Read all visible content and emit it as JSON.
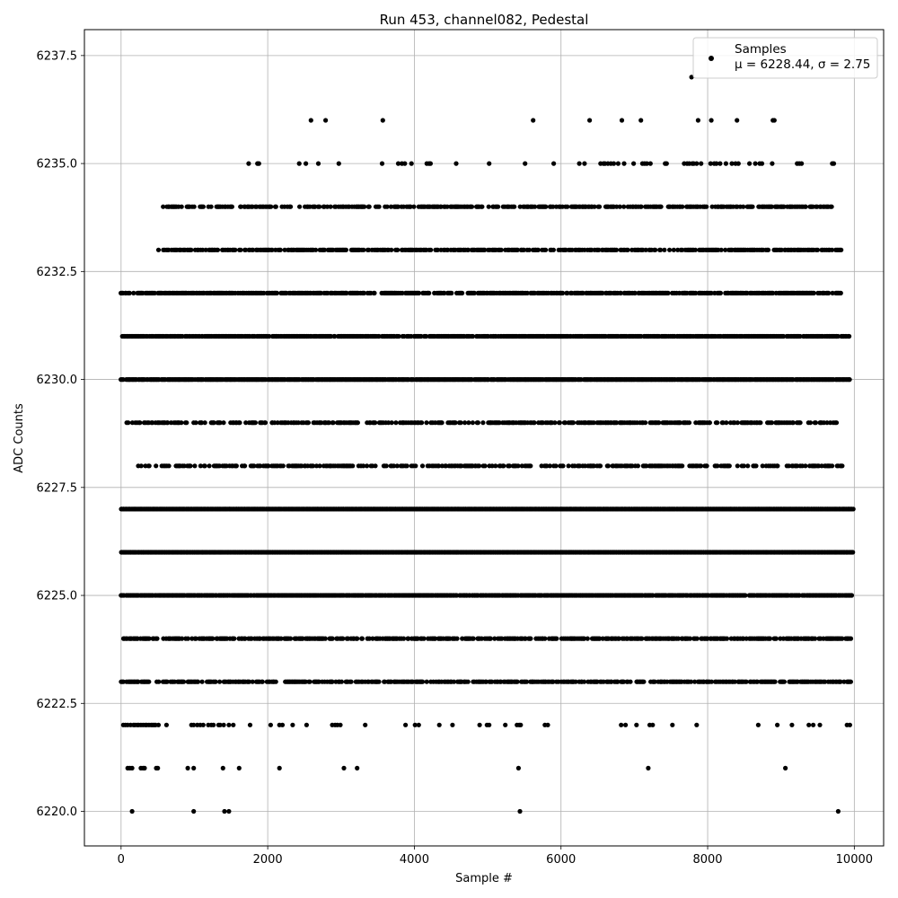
{
  "chart_data": {
    "type": "scatter",
    "title": "Run 453, channel082, Pedestal",
    "xlabel": "Sample #",
    "ylabel": "ADC Counts",
    "xlim": [
      -500,
      10400
    ],
    "ylim": [
      6219.2,
      6238.1
    ],
    "x_ticks": [
      0,
      2000,
      4000,
      6000,
      8000,
      10000
    ],
    "x_tick_labels": [
      "0",
      "2000",
      "4000",
      "6000",
      "8000",
      "10000"
    ],
    "y_ticks": [
      6220.0,
      6222.5,
      6225.0,
      6227.5,
      6230.0,
      6232.5,
      6235.0,
      6237.5
    ],
    "y_tick_labels": [
      "6220.0",
      "6222.5",
      "6225.0",
      "6227.5",
      "6230.0",
      "6232.5",
      "6235.0",
      "6237.5"
    ],
    "grid": true,
    "legend": {
      "placement": "top-right",
      "label_line1": "Samples",
      "label_line2": "μ = 6228.44, σ = 2.75"
    },
    "series": [
      {
        "name": "Samples",
        "color": "#000000",
        "marker": "circle",
        "x_range": [
          0,
          9999
        ],
        "levels": [
          {
            "y": 6237,
            "x": [
              7780
            ]
          },
          {
            "y": 6236,
            "x": [
              2590,
              2790,
              3570,
              5620,
              6390,
              6830,
              7090,
              7870,
              8050,
              8400,
              8890,
              8910
            ]
          },
          {
            "y": 6235,
            "x": [
              1740,
              1860,
              1880,
              2430,
              2520,
              2690,
              2970,
              3560,
              3780,
              3830,
              3870,
              3960,
              4170,
              4200,
              4220,
              4570,
              5020,
              5510,
              5900,
              6250,
              6320,
              6540,
              6580,
              6600,
              6640,
              6680,
              6720,
              6780,
              6860,
              6990,
              7110,
              7140,
              7170,
              7220,
              7420,
              7440,
              7680,
              7720,
              7750,
              7790,
              7810,
              7850,
              7910,
              8040,
              8090,
              8120,
              8170,
              8250,
              8330,
              8380,
              8420,
              8570,
              8650,
              8710,
              8740,
              8880,
              9220,
              9250,
              9280,
              9700,
              9720
            ]
          },
          {
            "y": 6234,
            "dense": true,
            "x_start": 560,
            "x_end": 9720,
            "density": 0.55
          },
          {
            "y": 6233,
            "dense": true,
            "x_start": 510,
            "x_end": 9820,
            "density": 0.6
          },
          {
            "y": 6232,
            "dense": true,
            "x_start": 0,
            "x_end": 9820,
            "density": 0.7
          },
          {
            "y": 6231,
            "dense": true,
            "x_start": 20,
            "x_end": 9940,
            "density": 0.85
          },
          {
            "y": 6230,
            "dense": true,
            "x_start": 0,
            "x_end": 9940,
            "density": 0.95
          },
          {
            "y": 6229,
            "dense": true,
            "x_start": 80,
            "x_end": 9780,
            "density": 0.5
          },
          {
            "y": 6228,
            "dense": true,
            "x_start": 220,
            "x_end": 9860,
            "density": 0.45
          },
          {
            "y": 6227,
            "dense": true,
            "x_start": 0,
            "x_end": 9990,
            "density": 1.0
          },
          {
            "y": 6226,
            "dense": true,
            "x_start": 0,
            "x_end": 9990,
            "density": 1.0
          },
          {
            "y": 6225,
            "dense": true,
            "x_start": 0,
            "x_end": 9970,
            "density": 0.9
          },
          {
            "y": 6224,
            "dense": true,
            "x_start": 30,
            "x_end": 9960,
            "density": 0.6
          },
          {
            "y": 6223,
            "dense": true,
            "x_start": 0,
            "x_end": 9970,
            "density": 0.6
          },
          {
            "y": 6222,
            "x": [
              30,
              60,
              90,
              130,
              170,
              190,
              220,
              240,
              270,
              300,
              330,
              350,
              380,
              410,
              430,
              450,
              470,
              510,
              620,
              960,
              990,
              1040,
              1080,
              1120,
              1190,
              1230,
              1260,
              1330,
              1350,
              1400,
              1470,
              1530,
              1760,
              2040,
              2160,
              2200,
              2340,
              2530,
              2880,
              2920,
              2950,
              2990,
              3330,
              3880,
              4010,
              4060,
              4340,
              4520,
              4890,
              4990,
              5020,
              5240,
              5400,
              5430,
              5450,
              5780,
              5820,
              6820,
              6880,
              7030,
              7210,
              7250,
              7520,
              7850,
              8690,
              8950,
              9150,
              9380,
              9440,
              9530,
              9900,
              9940
            ]
          },
          {
            "y": 6221,
            "x": [
              90,
              120,
              150,
              270,
              300,
              320,
              480,
              500,
              910,
              990,
              1390,
              1610,
              2160,
              3040,
              3220,
              5420,
              7190,
              9060
            ]
          },
          {
            "y": 6220,
            "x": [
              150,
              990,
              1410,
              1470,
              5440,
              9780
            ]
          }
        ]
      }
    ]
  }
}
